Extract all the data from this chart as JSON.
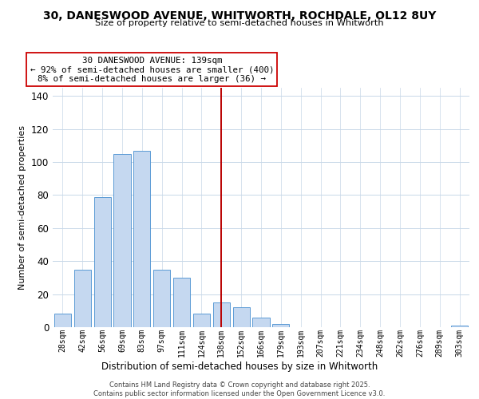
{
  "title_line1": "30, DANESWOOD AVENUE, WHITWORTH, ROCHDALE, OL12 8UY",
  "title_line2": "Size of property relative to semi-detached houses in Whitworth",
  "xlabel": "Distribution of semi-detached houses by size in Whitworth",
  "ylabel": "Number of semi-detached properties",
  "bar_labels": [
    "28sqm",
    "42sqm",
    "56sqm",
    "69sqm",
    "83sqm",
    "97sqm",
    "111sqm",
    "124sqm",
    "138sqm",
    "152sqm",
    "166sqm",
    "179sqm",
    "193sqm",
    "207sqm",
    "221sqm",
    "234sqm",
    "248sqm",
    "262sqm",
    "276sqm",
    "289sqm",
    "303sqm"
  ],
  "bar_values": [
    8,
    35,
    79,
    105,
    107,
    35,
    30,
    8,
    15,
    12,
    6,
    2,
    0,
    0,
    0,
    0,
    0,
    0,
    0,
    0,
    1
  ],
  "bar_color": "#c5d8f0",
  "bar_edge_color": "#5b9bd5",
  "vline_x_idx": 8,
  "vline_color": "#bb0000",
  "ylim": [
    0,
    145
  ],
  "yticks": [
    0,
    20,
    40,
    60,
    80,
    100,
    120,
    140
  ],
  "annotation_title": "30 DANESWOOD AVENUE: 139sqm",
  "annotation_line1": "← 92% of semi-detached houses are smaller (400)",
  "annotation_line2": "8% of semi-detached houses are larger (36) →",
  "annotation_box_color": "#ffffff",
  "annotation_box_edge": "#cc0000",
  "footer_line1": "Contains HM Land Registry data © Crown copyright and database right 2025.",
  "footer_line2": "Contains public sector information licensed under the Open Government Licence v3.0.",
  "background_color": "#ffffff",
  "grid_color": "#c8d8e8"
}
